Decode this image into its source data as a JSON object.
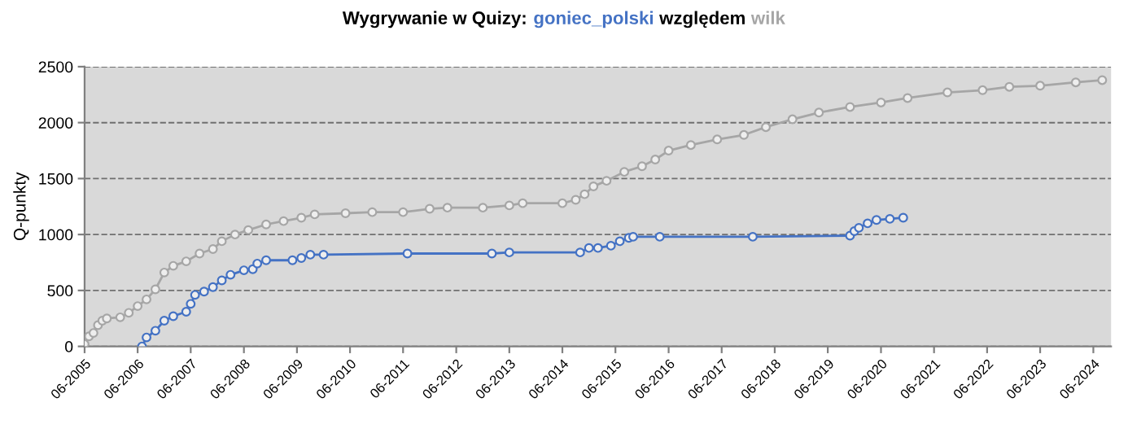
{
  "chart_data": {
    "type": "line",
    "title": "Wygrywanie w Quizy:",
    "annotations": [
      "względem"
    ],
    "ylabel": "Q-punkty",
    "legend": "top",
    "marker": "circle",
    "line_style": "solid",
    "grid": "y",
    "ylim": [
      0,
      2500
    ],
    "yticks": [
      0,
      500,
      1000,
      1500,
      2000,
      2500
    ],
    "xlim": [
      "2005-06",
      "2024-10"
    ],
    "xticks": [
      {
        "value": "2005-06",
        "label": "06-2005"
      },
      {
        "value": "2006-06",
        "label": "06-2006"
      },
      {
        "value": "2007-06",
        "label": "06-2007"
      },
      {
        "value": "2008-06",
        "label": "06-2008"
      },
      {
        "value": "2009-06",
        "label": "06-2009"
      },
      {
        "value": "2010-06",
        "label": "06-2010"
      },
      {
        "value": "2011-06",
        "label": "06-2011"
      },
      {
        "value": "2012-06",
        "label": "06-2012"
      },
      {
        "value": "2013-06",
        "label": "06-2013"
      },
      {
        "value": "2014-06",
        "label": "06-2014"
      },
      {
        "value": "2015-06",
        "label": "06-2015"
      },
      {
        "value": "2016-06",
        "label": "06-2016"
      },
      {
        "value": "2017-06",
        "label": "06-2017"
      },
      {
        "value": "2018-06",
        "label": "06-2018"
      },
      {
        "value": "2019-06",
        "label": "06-2019"
      },
      {
        "value": "2020-06",
        "label": "06-2020"
      },
      {
        "value": "2021-06",
        "label": "06-2021"
      },
      {
        "value": "2022-06",
        "label": "06-2022"
      },
      {
        "value": "2023-06",
        "label": "06-2023"
      },
      {
        "value": "2024-06",
        "label": "06-2024"
      }
    ],
    "series": [
      {
        "name": "goniec_polski",
        "color": "#4472c4",
        "x": [
          "2006-07",
          "2006-08",
          "2006-10",
          "2006-12",
          "2007-02",
          "2007-05",
          "2007-06",
          "2007-07",
          "2007-09",
          "2007-11",
          "2008-01",
          "2008-03",
          "2008-06",
          "2008-08",
          "2008-09",
          "2008-11",
          "2009-05",
          "2009-07",
          "2009-09",
          "2009-12",
          "2011-07",
          "2013-02",
          "2013-06",
          "2014-10",
          "2014-12",
          "2015-02",
          "2015-05",
          "2015-07",
          "2015-09",
          "2015-10",
          "2016-04",
          "2018-01",
          "2019-11",
          "2019-12",
          "2020-01",
          "2020-03",
          "2020-05",
          "2020-08",
          "2020-11"
        ],
        "values": [
          0,
          80,
          140,
          230,
          270,
          310,
          380,
          460,
          490,
          530,
          590,
          640,
          680,
          690,
          740,
          770,
          770,
          790,
          820,
          820,
          830,
          830,
          840,
          840,
          880,
          880,
          900,
          940,
          970,
          980,
          980,
          980,
          990,
          1030,
          1060,
          1100,
          1130,
          1140,
          1150
        ]
      },
      {
        "name": "wilk",
        "color": "#a6a6a6",
        "x": [
          "2005-06",
          "2005-07",
          "2005-08",
          "2005-09",
          "2005-10",
          "2005-11",
          "2006-02",
          "2006-04",
          "2006-06",
          "2006-08",
          "2006-10",
          "2006-12",
          "2007-02",
          "2007-05",
          "2007-08",
          "2007-11",
          "2008-01",
          "2008-04",
          "2008-07",
          "2008-11",
          "2009-03",
          "2009-07",
          "2009-10",
          "2010-05",
          "2010-11",
          "2011-06",
          "2011-12",
          "2012-04",
          "2012-12",
          "2013-06",
          "2013-09",
          "2014-06",
          "2014-09",
          "2014-11",
          "2015-01",
          "2015-04",
          "2015-08",
          "2015-12",
          "2016-03",
          "2016-06",
          "2016-11",
          "2017-05",
          "2017-11",
          "2018-04",
          "2018-10",
          "2019-04",
          "2019-11",
          "2020-06",
          "2020-12",
          "2021-09",
          "2022-05",
          "2022-11",
          "2023-06",
          "2024-02",
          "2024-08"
        ],
        "values": [
          20,
          90,
          120,
          190,
          230,
          250,
          260,
          300,
          360,
          420,
          510,
          660,
          720,
          760,
          830,
          870,
          940,
          1000,
          1040,
          1090,
          1120,
          1150,
          1180,
          1190,
          1200,
          1200,
          1230,
          1240,
          1240,
          1260,
          1280,
          1280,
          1310,
          1360,
          1430,
          1480,
          1560,
          1610,
          1670,
          1750,
          1800,
          1850,
          1890,
          1960,
          2030,
          2090,
          2140,
          2180,
          2220,
          2270,
          2290,
          2320,
          2330,
          2360,
          2380
        ]
      }
    ]
  }
}
